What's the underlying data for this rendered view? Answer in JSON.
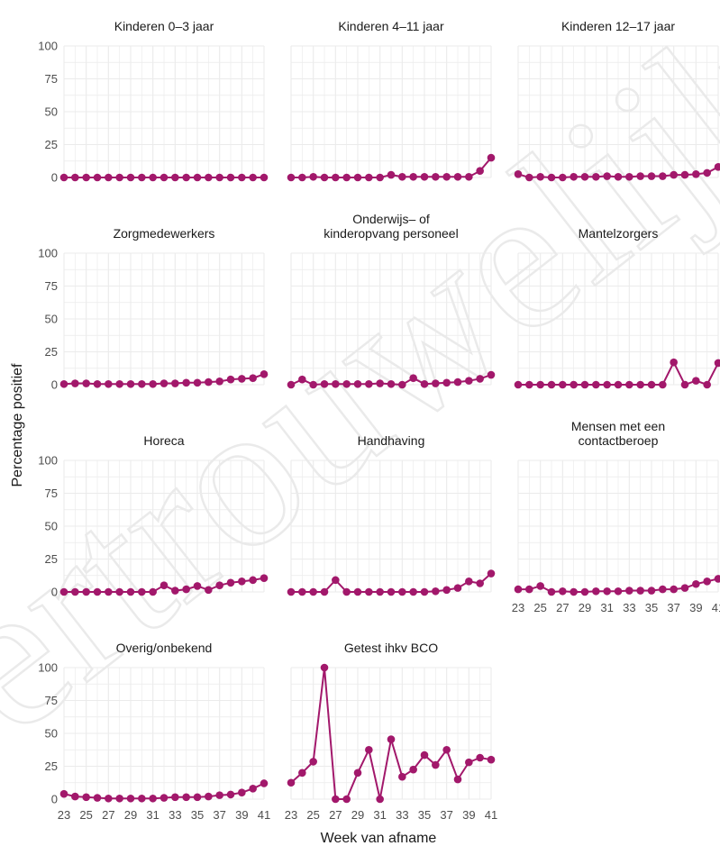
{
  "watermark": "Vertrouwelijk",
  "colors": {
    "series": "#a2186b",
    "grid": "#ebebeb",
    "watermark": "#d9d9d9"
  },
  "chart_data": {
    "type": "line",
    "facet_layout": "3 columns x 4 rows",
    "xlabel": "Week van afname",
    "ylabel": "Percentage positief",
    "x": [
      23,
      24,
      25,
      26,
      27,
      28,
      29,
      30,
      31,
      32,
      33,
      34,
      35,
      36,
      37,
      38,
      39,
      40,
      41
    ],
    "x_ticks": [
      "23",
      "25",
      "27",
      "29",
      "31",
      "33",
      "35",
      "37",
      "39",
      "41"
    ],
    "y_ticks": [
      "0",
      "25",
      "50",
      "75",
      "100"
    ],
    "ylim": [
      0,
      100
    ],
    "grid": true,
    "panels": [
      {
        "title": [
          "Kinderen 0–3 jaar"
        ],
        "values": [
          0,
          0,
          0,
          0,
          0,
          0,
          0,
          0,
          0,
          0,
          0,
          0,
          0,
          0,
          0,
          0,
          0,
          0,
          0
        ]
      },
      {
        "title": [
          "Kinderen 4–11 jaar"
        ],
        "values": [
          0,
          0,
          0.5,
          0,
          0,
          0,
          0,
          0,
          0,
          2,
          0.5,
          0.5,
          0.5,
          0.5,
          0.5,
          0.5,
          0.5,
          5,
          15
        ]
      },
      {
        "title": [
          "Kinderen 12–17 jaar"
        ],
        "values": [
          2.5,
          0,
          0.5,
          0,
          0,
          0.5,
          0.5,
          0.5,
          1,
          0.5,
          0.5,
          1,
          1,
          1,
          2,
          2,
          2.5,
          3.5,
          8
        ]
      },
      {
        "title": [
          "Zorgmedewerkers"
        ],
        "values": [
          0.5,
          1,
          1,
          0.5,
          0.5,
          0.5,
          0.5,
          0.5,
          0.5,
          1,
          1,
          1.5,
          1.5,
          2,
          2.5,
          4,
          4.5,
          5,
          8
        ]
      },
      {
        "title": [
          "Onderwijs– of",
          "kinderopvang personeel"
        ],
        "values": [
          0,
          4,
          0,
          0.5,
          0.5,
          0.5,
          0.5,
          0.5,
          1,
          0.5,
          0,
          5,
          0.5,
          1,
          1.5,
          2,
          3,
          4.5,
          7.5
        ]
      },
      {
        "title": [
          "Mantelzorgers"
        ],
        "values": [
          0,
          0,
          0,
          0,
          0,
          0,
          0,
          0,
          0,
          0,
          0,
          0,
          0,
          0,
          17,
          0,
          3,
          0,
          16.5
        ]
      },
      {
        "title": [
          "Horeca"
        ],
        "values": [
          0,
          0,
          0,
          0,
          0,
          0,
          0,
          0,
          0,
          5,
          1,
          2,
          4.5,
          1.5,
          5,
          7,
          8,
          9,
          10.5
        ]
      },
      {
        "title": [
          "Handhaving"
        ],
        "values": [
          0,
          0,
          0,
          0,
          9,
          0,
          0,
          0,
          0,
          0,
          0,
          0,
          0,
          0.5,
          1.5,
          3,
          8,
          6.5,
          14
        ]
      },
      {
        "title": [
          "Mensen met een",
          "contactberoep"
        ],
        "values": [
          2,
          2,
          4.5,
          0,
          0.5,
          0,
          0,
          0.5,
          0.5,
          0.5,
          1,
          1,
          1,
          2,
          2,
          3,
          6,
          8,
          10
        ]
      },
      {
        "title": [
          "Overig/onbekend"
        ],
        "values": [
          4,
          2,
          1.5,
          1,
          0.5,
          0.5,
          0.5,
          0.5,
          0.5,
          1,
          1.5,
          1.5,
          1.5,
          2,
          3,
          3.5,
          5,
          8,
          12
        ]
      },
      {
        "title": [
          "Getest ihkv BCO"
        ],
        "values": [
          12.5,
          20,
          28.5,
          100,
          0,
          0,
          20,
          37.5,
          0,
          45.5,
          17,
          22.5,
          33.5,
          26,
          37.5,
          15,
          28,
          31.5,
          30
        ]
      }
    ]
  }
}
